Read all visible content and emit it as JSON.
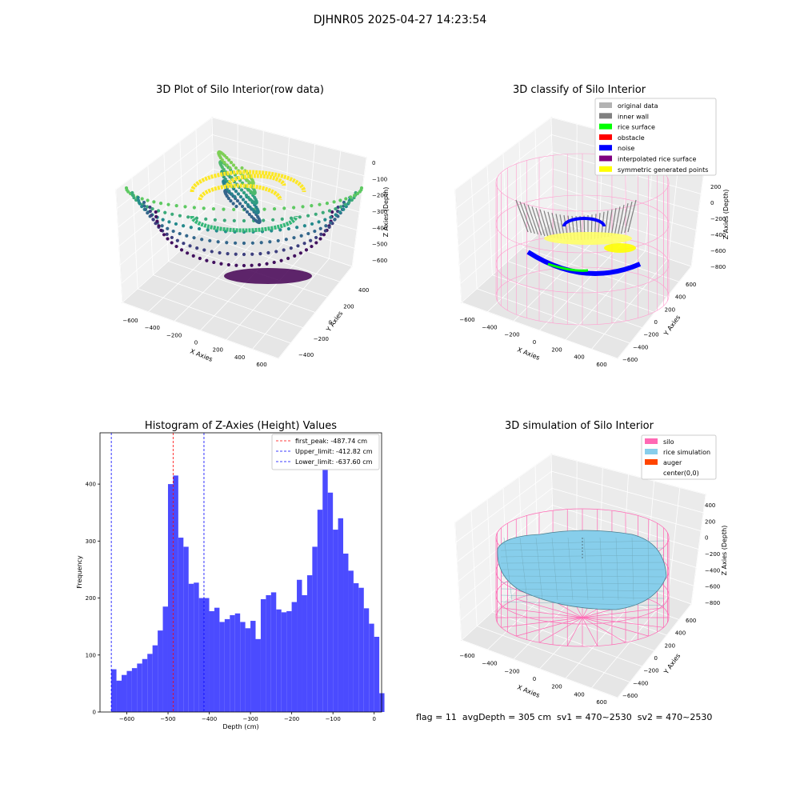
{
  "figure": {
    "suptitle": "DJHNR05 2025-04-27 14:23:54",
    "footer": "flag = 11  avgDepth = 305 cm  sv1 = 470~2530  sv2 = 470~2530"
  },
  "colors": {
    "hist_bar": "#4b4bff",
    "first_peak_line": "#ff0000",
    "limit_line": "#0000ff",
    "silo_wire": "#ff69b4",
    "rice_sim": "#87ceeb",
    "auger": "#ff4500",
    "grid_plane": "#f2f2f2"
  },
  "chart_data": [
    {
      "id": "raw",
      "type": "scatter",
      "title": "3D Plot of Silo Interior(row data)",
      "xlabel": "X Axies",
      "ylabel": "Y Axies",
      "zlabel": "Z Axies (Depth)",
      "xticks": [
        "−600",
        "−400",
        "−200",
        "0",
        "200",
        "400",
        "600"
      ],
      "yticks": [
        "−400",
        "−200",
        "0",
        "200",
        "400"
      ],
      "zticks": [
        "0",
        "−100",
        "−200",
        "−300",
        "−400",
        "−500",
        "−600"
      ],
      "xlim": [
        -700,
        700
      ],
      "ylim": [
        -500,
        500
      ],
      "zlim": [
        -680,
        20
      ],
      "colormap": "viridis"
    },
    {
      "id": "classify",
      "type": "scatter",
      "title": "3D classify of Silo Interior",
      "xlabel": "X Axies",
      "ylabel": "Y Axies",
      "zlabel": "Z Axies (Depth)",
      "xticks": [
        "−600",
        "−400",
        "−200",
        "0",
        "200",
        "400",
        "600"
      ],
      "yticks": [
        "−600",
        "−400",
        "−200",
        "0",
        "200",
        "400",
        "600"
      ],
      "zticks": [
        "200",
        "0",
        "−200",
        "−400",
        "−600",
        "−800"
      ],
      "legend_position": "top-right",
      "legend": [
        {
          "label": "original data",
          "color": "#b3b3b3"
        },
        {
          "label": "inner wall",
          "color": "#808080"
        },
        {
          "label": "rice surface",
          "color": "#00ff00"
        },
        {
          "label": "obstacle",
          "color": "#ff0000"
        },
        {
          "label": "noise",
          "color": "#0000ff"
        },
        {
          "label": "interpolated rice surface",
          "color": "#800080"
        },
        {
          "label": "symmetric generated points",
          "color": "#ffff00"
        }
      ]
    },
    {
      "id": "hist",
      "type": "bar",
      "title": "Histogram of Z-Axies (Height) Values",
      "xlabel": "Depth (cm)",
      "ylabel": "Frequency",
      "xlim": [
        -665,
        18
      ],
      "ylim": [
        0,
        490
      ],
      "xticks": [
        -600,
        -500,
        -400,
        -300,
        -200,
        -100,
        0
      ],
      "yticks": [
        0,
        100,
        200,
        300,
        400
      ],
      "bin_start": -637.6,
      "bin_width": 12.5,
      "values": [
        75,
        55,
        65,
        72,
        77,
        85,
        93,
        102,
        117,
        143,
        185,
        400,
        415,
        306,
        290,
        225,
        227,
        200,
        200,
        177,
        183,
        158,
        163,
        170,
        173,
        158,
        147,
        160,
        128,
        198,
        205,
        210,
        180,
        175,
        177,
        193,
        232,
        205,
        240,
        290,
        355,
        430,
        385,
        320,
        340,
        278,
        248,
        226,
        218,
        182,
        155,
        132,
        33
      ],
      "lines": [
        {
          "label": "first_peak: -487.74 cm",
          "x": -487.74,
          "color": "#ff0000"
        },
        {
          "label": "Upper_limit: -412.82 cm",
          "x": -412.82,
          "color": "#0000ff"
        },
        {
          "label": "Lower_limit: -637.60 cm",
          "x": -637.6,
          "color": "#0000ff"
        }
      ],
      "legend_position": "top-right"
    },
    {
      "id": "sim",
      "type": "surface",
      "title": "3D simulation of Silo Interior",
      "xlabel": "X Axies",
      "ylabel": "Y Axies",
      "zlabel": "Z Axies (Depth)",
      "xticks": [
        "−600",
        "−400",
        "−200",
        "0",
        "200",
        "400",
        "600"
      ],
      "yticks": [
        "−600",
        "−400",
        "−200",
        "0",
        "200",
        "400",
        "600"
      ],
      "zticks": [
        "400",
        "200",
        "0",
        "−200",
        "−400",
        "−600",
        "−800"
      ],
      "legend_position": "top-right",
      "legend": [
        {
          "label": "silo",
          "color": "#ff69b4"
        },
        {
          "label": "rice simulation",
          "color": "#87ceeb"
        },
        {
          "label": "auger",
          "color": "#ff4500"
        },
        {
          "label": "center(0,0)",
          "color": ""
        }
      ]
    }
  ]
}
